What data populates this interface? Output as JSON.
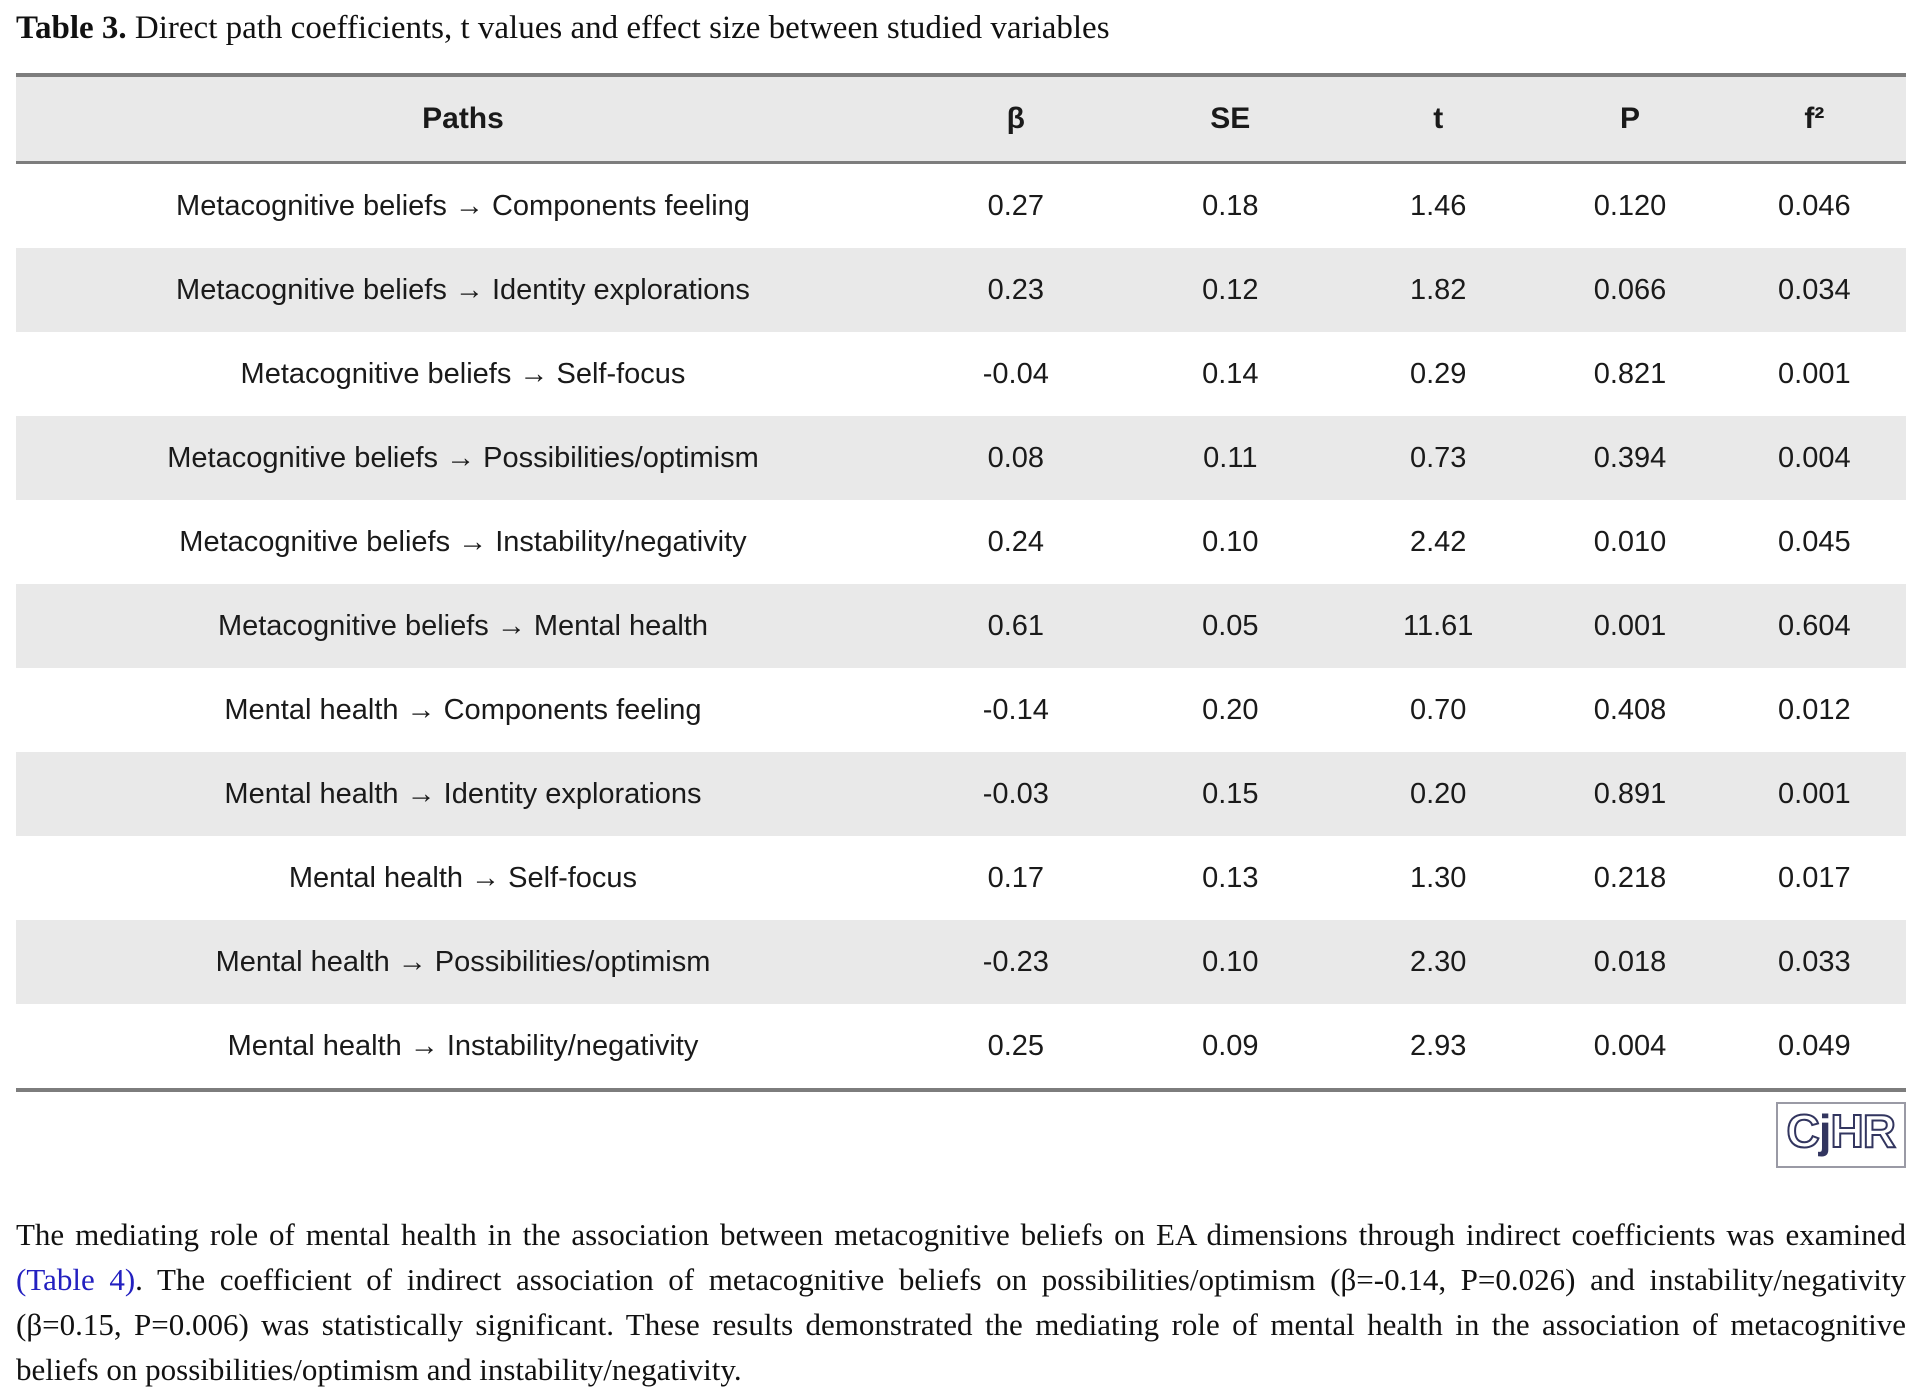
{
  "caption": {
    "label": "Table 3.",
    "text": " Direct path coefficients, t values and effect size between studied variables"
  },
  "table": {
    "columns": [
      "Paths",
      "β",
      "SE",
      "t",
      "P",
      "f²"
    ],
    "rows": [
      {
        "path": "Metacognitive beliefs → Components feeling",
        "beta": "0.27",
        "se": "0.18",
        "t": "1.46",
        "p": "0.120",
        "f2": "0.046"
      },
      {
        "path": "Metacognitive beliefs → Identity explorations",
        "beta": "0.23",
        "se": "0.12",
        "t": "1.82",
        "p": "0.066",
        "f2": "0.034"
      },
      {
        "path": "Metacognitive beliefs → Self-focus",
        "beta": "-0.04",
        "se": "0.14",
        "t": "0.29",
        "p": "0.821",
        "f2": "0.001"
      },
      {
        "path": "Metacognitive beliefs → Possibilities/optimism",
        "beta": "0.08",
        "se": "0.11",
        "t": "0.73",
        "p": "0.394",
        "f2": "0.004"
      },
      {
        "path": "Metacognitive beliefs → Instability/negativity",
        "beta": "0.24",
        "se": "0.10",
        "t": "2.42",
        "p": "0.010",
        "f2": "0.045"
      },
      {
        "path": "Metacognitive beliefs → Mental health",
        "beta": "0.61",
        "se": "0.05",
        "t": "11.61",
        "p": "0.001",
        "f2": "0.604"
      },
      {
        "path": "Mental health → Components feeling",
        "beta": "-0.14",
        "se": "0.20",
        "t": "0.70",
        "p": "0.408",
        "f2": "0.012"
      },
      {
        "path": "Mental health → Identity explorations",
        "beta": "-0.03",
        "se": "0.15",
        "t": "0.20",
        "p": "0.891",
        "f2": "0.001"
      },
      {
        "path": "Mental health → Self-focus",
        "beta": "0.17",
        "se": "0.13",
        "t": "1.30",
        "p": "0.218",
        "f2": "0.017"
      },
      {
        "path": "Mental health → Possibilities/optimism",
        "beta": "-0.23",
        "se": "0.10",
        "t": "2.30",
        "p": "0.018",
        "f2": "0.033"
      },
      {
        "path": "Mental health → Instability/negativity",
        "beta": "0.25",
        "se": "0.09",
        "t": "2.93",
        "p": "0.004",
        "f2": "0.049"
      }
    ]
  },
  "logo": {
    "letters": [
      {
        "char": "C",
        "style": "outline"
      },
      {
        "char": "j",
        "style": "solid"
      },
      {
        "char": "H",
        "style": "outline"
      },
      {
        "char": "R",
        "style": "outline"
      }
    ],
    "navy": "#32355f"
  },
  "paragraph": {
    "before": "The mediating role of mental health in the association between metacognitive beliefs on EA dimensions through indirect coefficients was examined ",
    "link": "(Table 4)",
    "after": ". The coefficient of indirect association of metacognitive beliefs on possibilities/optimism (β=-0.14, P=0.026) and instability/negativity (β=0.15, P=0.006) was statistically significant. These results demonstrated the mediating role of mental health in the association of metacognitive beliefs on possibilities/optimism and instability/negativity."
  },
  "colors": {
    "row_shade": "#e9e9e9",
    "table_border": "#7d7d7d",
    "link_blue": "#2320c0",
    "logo_navy": "#32355f"
  }
}
